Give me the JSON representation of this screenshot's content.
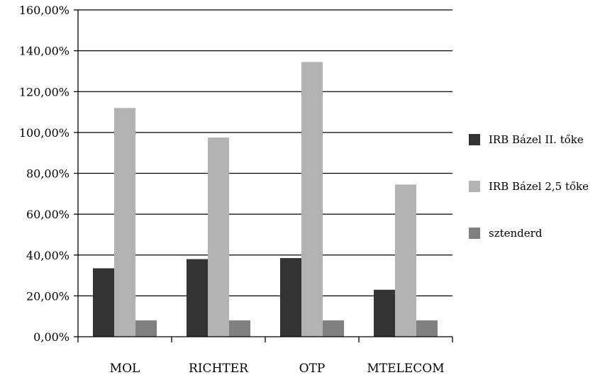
{
  "chart_data": {
    "type": "bar",
    "categories": [
      "MOL",
      "RICHTER",
      "OTP",
      "MTELECOM"
    ],
    "series": [
      {
        "name": "IRB Bázel II. tőke",
        "values": [
          33.5,
          38.0,
          38.5,
          23.0
        ],
        "color": "#333333"
      },
      {
        "name": "IRB Bázel 2,5 tőke",
        "values": [
          112.0,
          97.5,
          134.5,
          74.5
        ],
        "color": "#b3b3b3"
      },
      {
        "name": "sztenderd",
        "values": [
          8.0,
          8.0,
          8.0,
          8.0
        ],
        "color": "#808080"
      }
    ],
    "ylim": [
      0,
      160
    ],
    "yticks": [
      0,
      20,
      40,
      60,
      80,
      100,
      120,
      140,
      160
    ],
    "ytick_labels": [
      "0,00%",
      "20,00%",
      "40,00%",
      "60,00%",
      "80,00%",
      "100,00%",
      "120,00%",
      "140,00%",
      "160,00%"
    ],
    "grid": true,
    "legend_position": "right",
    "title": "",
    "xlabel": "",
    "ylabel": ""
  }
}
